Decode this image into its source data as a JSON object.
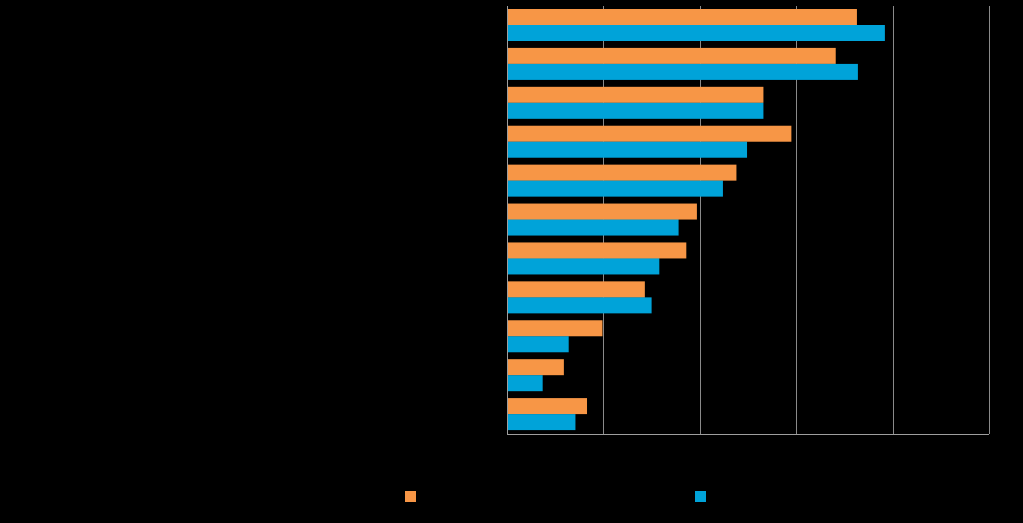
{
  "chart_data": {
    "type": "bar",
    "orientation": "horizontal",
    "title": "",
    "xlabel": "",
    "ylabel": "",
    "categories": [
      "",
      "",
      "",
      "",
      "",
      "",
      "",
      "",
      "",
      "",
      ""
    ],
    "xlim": [
      0,
      50
    ],
    "grid": true,
    "legend_position": "bottom",
    "series": [
      {
        "color": "#F79646",
        "values": [
          36.3,
          34.1,
          26.6,
          29.5,
          23.8,
          19.7,
          18.6,
          14.3,
          9.9,
          5.9,
          8.3
        ]
      },
      {
        "color": "#00A3D9",
        "values": [
          39.2,
          36.4,
          26.6,
          24.9,
          22.4,
          17.8,
          15.8,
          15.0,
          6.4,
          3.7,
          7.1
        ]
      }
    ]
  },
  "colors": {
    "background": "#000000",
    "axis": "#9E9E9E",
    "grid": "#8A8A8A"
  }
}
